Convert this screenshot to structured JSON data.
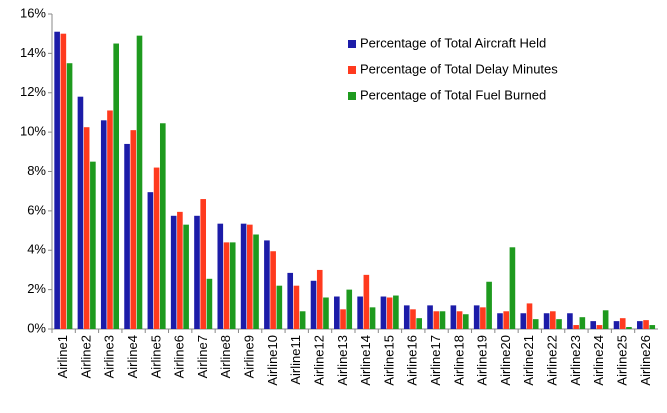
{
  "chart_data": {
    "type": "bar",
    "categories": [
      "Airline1",
      "Airline2",
      "Airline3",
      "Airline4",
      "Airline5",
      "Airline6",
      "Airline7",
      "Airline8",
      "Airline9",
      "Airline10",
      "Airline11",
      "Airline12",
      "Airline13",
      "Airline14",
      "Airline15",
      "Airline16",
      "Airline17",
      "Airline18",
      "Airline19",
      "Airline20",
      "Airline21",
      "Airline22",
      "Airline23",
      "Airline24",
      "Airline25",
      "Airline26"
    ],
    "series": [
      {
        "name": "Percentage of Total Aircraft Held",
        "color": "#1c1ca8",
        "values": [
          15.1,
          11.8,
          10.6,
          9.4,
          6.95,
          5.75,
          5.75,
          5.35,
          5.35,
          4.5,
          2.85,
          2.45,
          1.65,
          1.65,
          1.65,
          1.2,
          1.2,
          1.2,
          1.2,
          0.8,
          0.8,
          0.8,
          0.8,
          0.4,
          0.4,
          0.4
        ]
      },
      {
        "name": "Percentage of Total Delay Minutes",
        "color": "#ff3a1e",
        "values": [
          15.0,
          10.25,
          11.1,
          10.1,
          8.2,
          5.95,
          6.6,
          4.4,
          5.3,
          3.95,
          2.2,
          3.0,
          1.0,
          2.75,
          1.6,
          1.0,
          0.9,
          0.9,
          1.1,
          0.9,
          1.3,
          0.9,
          0.2,
          0.2,
          0.55,
          0.45
        ]
      },
      {
        "name": "Percentage of Total Fuel Burned",
        "color": "#1e9a1e",
        "values": [
          13.5,
          8.5,
          14.5,
          14.9,
          10.45,
          5.3,
          2.55,
          4.4,
          4.8,
          2.2,
          0.9,
          1.6,
          2.0,
          1.1,
          1.7,
          0.55,
          0.9,
          0.75,
          2.4,
          4.15,
          0.5,
          0.5,
          0.6,
          0.95,
          0.1,
          0.2
        ]
      }
    ],
    "ylim": [
      0,
      16
    ],
    "yticks": [
      {
        "value": 0,
        "label": "0%"
      },
      {
        "value": 2,
        "label": "2%"
      },
      {
        "value": 4,
        "label": "4%"
      },
      {
        "value": 6,
        "label": "6%"
      },
      {
        "value": 8,
        "label": "8%"
      },
      {
        "value": 10,
        "label": "10%"
      },
      {
        "value": 12,
        "label": "12%"
      },
      {
        "value": 14,
        "label": "14%"
      },
      {
        "value": 16,
        "label": "16%"
      }
    ],
    "grid": false,
    "legend": "upper right"
  }
}
